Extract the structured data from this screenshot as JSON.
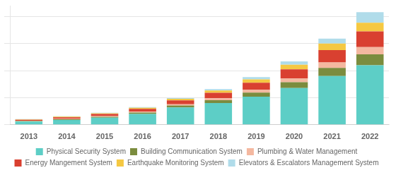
{
  "chart_data": {
    "type": "bar",
    "stacked": true,
    "categories": [
      "2013",
      "2014",
      "2015",
      "2016",
      "2017",
      "2018",
      "2019",
      "2020",
      "2021",
      "2022"
    ],
    "series": [
      {
        "name": "Physical Security System",
        "color": "#5DCEC6",
        "values": [
          0.6,
          0.9,
          1.3,
          2.0,
          3.2,
          4.0,
          5.2,
          6.8,
          9.0,
          11.0
        ]
      },
      {
        "name": "Building Communication System",
        "color": "#7B8C3E",
        "values": [
          0.08,
          0.12,
          0.18,
          0.25,
          0.35,
          0.52,
          0.75,
          1.05,
          1.5,
          2.0
        ]
      },
      {
        "name": "Plumbing & Water Management",
        "color": "#F4B8A0",
        "values": [
          0.06,
          0.09,
          0.13,
          0.18,
          0.25,
          0.38,
          0.52,
          0.7,
          1.0,
          1.35
        ]
      },
      {
        "name": "Energy Mangement System",
        "color": "#D94030",
        "values": [
          0.18,
          0.28,
          0.38,
          0.52,
          0.7,
          1.0,
          1.3,
          1.7,
          2.3,
          2.9
        ]
      },
      {
        "name": "Earthquake Monitoring System",
        "color": "#F5C842",
        "values": [
          0.08,
          0.11,
          0.15,
          0.2,
          0.28,
          0.42,
          0.6,
          0.82,
          1.2,
          1.6
        ]
      },
      {
        "name": "Elevators & Escalators Management System",
        "color": "#B0DCEA",
        "values": [
          0.04,
          0.06,
          0.08,
          0.1,
          0.15,
          0.28,
          0.43,
          0.63,
          0.9,
          1.95
        ]
      }
    ],
    "ylim": [
      0,
      22
    ],
    "yticks": [
      0,
      5,
      10,
      15,
      20
    ],
    "grid": true,
    "legend": "bottom",
    "tick_labels": "x"
  }
}
